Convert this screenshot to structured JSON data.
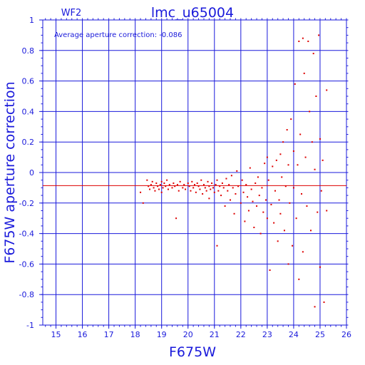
{
  "chart_data": {
    "type": "scatter",
    "title": "lmc_u65004",
    "chip_label": "WF2",
    "annotation": "Average aperture correction: -0.086",
    "xlabel": "F675W",
    "ylabel": "F675W aperture correction",
    "xlim": [
      14.5,
      26
    ],
    "ylim": [
      -1,
      1
    ],
    "xticks": [
      15,
      16,
      17,
      18,
      19,
      20,
      21,
      22,
      23,
      24,
      25,
      26
    ],
    "yticks": [
      -1,
      -0.8,
      -0.6,
      -0.4,
      -0.2,
      0,
      0.2,
      0.4,
      0.6,
      0.8,
      1
    ],
    "grid": true,
    "reference_line": -0.086,
    "colors": {
      "axes": "#1a1adb",
      "points": "#dd0000",
      "reference": "#dd0000"
    },
    "points": [
      [
        18.2,
        -0.13
      ],
      [
        18.3,
        -0.2
      ],
      [
        18.45,
        -0.05
      ],
      [
        18.5,
        -0.09
      ],
      [
        18.55,
        -0.11
      ],
      [
        18.6,
        -0.08
      ],
      [
        18.65,
        -0.06
      ],
      [
        18.7,
        -0.1
      ],
      [
        18.75,
        -0.12
      ],
      [
        18.8,
        -0.07
      ],
      [
        18.85,
        -0.09
      ],
      [
        18.9,
        -0.11
      ],
      [
        18.95,
        -0.08
      ],
      [
        19.0,
        -0.06
      ],
      [
        19.0,
        -0.13
      ],
      [
        19.05,
        -0.1
      ],
      [
        19.1,
        -0.07
      ],
      [
        19.15,
        -0.09
      ],
      [
        19.2,
        -0.05
      ],
      [
        19.25,
        -0.11
      ],
      [
        19.3,
        -0.08
      ],
      [
        19.4,
        -0.1
      ],
      [
        19.45,
        -0.07
      ],
      [
        19.5,
        -0.09
      ],
      [
        19.55,
        -0.3
      ],
      [
        19.6,
        -0.08
      ],
      [
        19.65,
        -0.12
      ],
      [
        19.7,
        -0.06
      ],
      [
        19.8,
        -0.1
      ],
      [
        19.85,
        -0.08
      ],
      [
        19.9,
        -0.11
      ],
      [
        20.0,
        -0.07
      ],
      [
        20.05,
        -0.09
      ],
      [
        20.1,
        -0.12
      ],
      [
        20.15,
        -0.06
      ],
      [
        20.2,
        -0.1
      ],
      [
        20.25,
        -0.08
      ],
      [
        20.3,
        -0.13
      ],
      [
        20.35,
        -0.07
      ],
      [
        20.4,
        -0.09
      ],
      [
        20.45,
        -0.11
      ],
      [
        20.5,
        -0.05
      ],
      [
        20.55,
        -0.14
      ],
      [
        20.6,
        -0.08
      ],
      [
        20.65,
        -0.1
      ],
      [
        20.7,
        -0.12
      ],
      [
        20.75,
        -0.06
      ],
      [
        20.8,
        -0.09
      ],
      [
        20.8,
        -0.17
      ],
      [
        20.85,
        -0.11
      ],
      [
        20.9,
        -0.07
      ],
      [
        20.95,
        -0.1
      ],
      [
        21.0,
        -0.13
      ],
      [
        21.05,
        -0.08
      ],
      [
        21.1,
        -0.48
      ],
      [
        21.1,
        -0.05
      ],
      [
        21.15,
        -0.12
      ],
      [
        21.2,
        -0.09
      ],
      [
        21.25,
        -0.15
      ],
      [
        21.3,
        -0.07
      ],
      [
        21.35,
        -0.1
      ],
      [
        21.4,
        -0.22
      ],
      [
        21.45,
        -0.04
      ],
      [
        21.5,
        -0.12
      ],
      [
        21.55,
        -0.08
      ],
      [
        21.6,
        -0.18
      ],
      [
        21.65,
        -0.02
      ],
      [
        21.7,
        -0.1
      ],
      [
        21.75,
        -0.27
      ],
      [
        21.8,
        -0.14
      ],
      [
        21.85,
        0.01
      ],
      [
        21.9,
        -0.09
      ],
      [
        22.0,
        -0.2
      ],
      [
        22.05,
        -0.05
      ],
      [
        22.1,
        -0.13
      ],
      [
        22.15,
        -0.32
      ],
      [
        22.2,
        -0.08
      ],
      [
        22.25,
        -0.16
      ],
      [
        22.3,
        -0.25
      ],
      [
        22.35,
        0.03
      ],
      [
        22.4,
        -0.11
      ],
      [
        22.45,
        -0.19
      ],
      [
        22.5,
        -0.36
      ],
      [
        22.55,
        -0.07
      ],
      [
        22.6,
        -0.22
      ],
      [
        22.65,
        -0.03
      ],
      [
        22.7,
        -0.15
      ],
      [
        22.75,
        -0.4
      ],
      [
        22.8,
        -0.1
      ],
      [
        22.85,
        -0.26
      ],
      [
        22.9,
        0.06
      ],
      [
        22.95,
        -0.18
      ],
      [
        23.0,
        -0.3
      ],
      [
        23.0,
        0.1
      ],
      [
        23.05,
        -0.05
      ],
      [
        23.1,
        -0.64
      ],
      [
        23.15,
        -0.21
      ],
      [
        23.2,
        0.04
      ],
      [
        23.25,
        -0.33
      ],
      [
        23.3,
        -0.12
      ],
      [
        23.35,
        0.08
      ],
      [
        23.4,
        -0.45
      ],
      [
        23.45,
        -0.18
      ],
      [
        23.5,
        0.12
      ],
      [
        23.5,
        -0.27
      ],
      [
        23.55,
        -0.03
      ],
      [
        23.6,
        0.2
      ],
      [
        23.65,
        -0.38
      ],
      [
        23.7,
        -0.09
      ],
      [
        23.75,
        0.28
      ],
      [
        23.8,
        -0.6
      ],
      [
        23.8,
        0.05
      ],
      [
        23.85,
        -0.2
      ],
      [
        23.9,
        0.35
      ],
      [
        23.95,
        -0.48
      ],
      [
        24.0,
        0.14
      ],
      [
        24.0,
        -0.1
      ],
      [
        24.05,
        0.58
      ],
      [
        24.1,
        -0.3
      ],
      [
        24.15,
        0.05
      ],
      [
        24.2,
        0.86
      ],
      [
        24.2,
        -0.7
      ],
      [
        24.25,
        0.25
      ],
      [
        24.3,
        -0.14
      ],
      [
        24.35,
        0.88
      ],
      [
        24.35,
        -0.52
      ],
      [
        24.4,
        0.65
      ],
      [
        24.45,
        0.1
      ],
      [
        24.5,
        -0.22
      ],
      [
        24.55,
        0.86
      ],
      [
        24.6,
        0.4
      ],
      [
        24.65,
        -0.38
      ],
      [
        24.7,
        0.2
      ],
      [
        24.75,
        0.78
      ],
      [
        24.8,
        -0.88
      ],
      [
        24.8,
        0.02
      ],
      [
        24.85,
        0.5
      ],
      [
        24.9,
        -0.26
      ],
      [
        24.95,
        0.9
      ],
      [
        25.0,
        -0.62
      ],
      [
        25.0,
        0.22
      ],
      [
        25.05,
        -0.12
      ],
      [
        25.1,
        0.08
      ],
      [
        25.15,
        -0.85
      ],
      [
        25.25,
        0.54
      ],
      [
        25.25,
        -0.25
      ]
    ]
  }
}
